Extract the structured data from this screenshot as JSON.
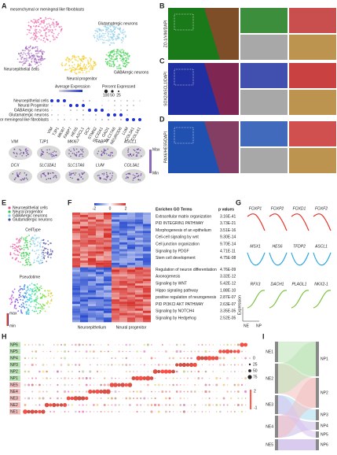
{
  "panel_letters": [
    "A",
    "B",
    "C",
    "D",
    "E",
    "F",
    "G",
    "H",
    "I"
  ],
  "A": {
    "umap_labels": [
      "mesenchymal or meningeal like fibroblasts",
      "Glutamatergic neurons",
      "Neuroepithelial cells",
      "GABAergic neurons",
      "Neural progenitor"
    ],
    "avg_title": "Average Expression",
    "pct_title": "Percent Expressed",
    "pct_sizes": [
      "100",
      "50",
      "25"
    ],
    "rows": [
      "Neuroepithelial cells",
      "Neural Progenitor",
      "GABAergic neurons",
      "Glutamatergic neurons",
      "mesenchymal or meningeal like fibroblasts"
    ],
    "dot_genes": [
      "VIM",
      "TJP1",
      "MKI67",
      "FABP7",
      "HES5",
      "ASCL1",
      "DCX",
      "STMN2",
      "SLC32A1",
      "GAD1",
      "SLC17A6",
      "NEUROD6",
      "LUM",
      "COL3A1",
      "COL1A1"
    ],
    "feature_genes": [
      "VIM",
      "TJP1",
      "MKI67",
      "FABP7",
      "ASCL1",
      "DCX",
      "SLC32A1",
      "SLC17A6",
      "LUM",
      "COL3A1"
    ],
    "scale": [
      "Max",
      "Min"
    ]
  },
  "B": {
    "stain": "ZO-1/VIM/DAPI"
  },
  "C": {
    "stain": "SOX2/ASCL1/DAPI"
  },
  "D": {
    "stain": "PAX6/HES5/DAPI"
  },
  "E": {
    "legend": [
      "Neuroepithelial cells",
      "Neural progenitor",
      "GABAergic neurons",
      "Glutamatergic neurons"
    ],
    "titles": [
      "CellType",
      "Pseudotime"
    ],
    "scale": [
      "max",
      "min"
    ]
  },
  "F": {
    "scale_ticks": [
      "-2",
      "0",
      "2"
    ],
    "header": [
      "Enrichen GO Terms",
      "p values"
    ],
    "terms": [
      [
        "Extracellular matrix organization",
        "3.16E-41"
      ],
      [
        "PID INTEGRIN1 PATHWAY",
        "3.73E-21"
      ],
      [
        "Morphogenesis of an epithelium",
        "3.51E-16"
      ],
      [
        "Cell-cell signaling by wnt",
        "9.30E-14"
      ],
      [
        "Cell junction organization",
        "9.70E-14"
      ],
      [
        "Signaling by PDGF",
        "4.71E-11"
      ],
      [
        "Stem cell development",
        "4.75E-08"
      ],
      [
        "Regulation of neuron differentiation",
        "4.76E-09"
      ],
      [
        "Axonogenesis",
        "3.32E-12"
      ],
      [
        "Signaling by WNT",
        "5.42E-12"
      ],
      [
        "Hippo signaling pathway",
        "1.88E-10"
      ],
      [
        "positive regulation of neurogenesis",
        "2.87E-07"
      ],
      [
        "PID PI3KCI AKT PATHWAY",
        "2.63E-07"
      ],
      [
        "Signaling by NOTCH4",
        "3.35E-05"
      ],
      [
        "Signaling by Hedgehog",
        "2.52E-05"
      ]
    ],
    "xlabels": [
      "Neuroepithelium",
      "Neural progenitor"
    ]
  },
  "G": {
    "groups": [
      {
        "color": "#e8342b",
        "genes": [
          "FOXP1",
          "FOXP2",
          "FOXD1",
          "FOXF2"
        ]
      },
      {
        "color": "#2aa6df",
        "genes": [
          "MSX1",
          "HES6",
          "TFDP2",
          "ASCL1"
        ]
      },
      {
        "color": "#7cc242",
        "genes": [
          "RFX3",
          "DACH1",
          "PLAGL1",
          "NKX2-1"
        ]
      }
    ],
    "ylabel": "Expression",
    "xlabels": [
      "NE",
      "NP"
    ]
  },
  "H": {
    "rows": [
      "NP6",
      "NP5",
      "NP4",
      "NP3",
      "NP2",
      "NP1",
      "NE5",
      "NE4",
      "NE3",
      "NE2",
      "NE1"
    ],
    "color_ticks": [
      "2",
      "-1"
    ],
    "sizes": [
      "0",
      "25",
      "50",
      "75"
    ]
  },
  "I": {
    "left": [
      "NE1",
      "NE2",
      "NE3",
      "NE4",
      "NE5"
    ],
    "right": [
      "NP1",
      "NP2",
      "NP3",
      "NP4",
      "NP5",
      "NP6"
    ]
  }
}
